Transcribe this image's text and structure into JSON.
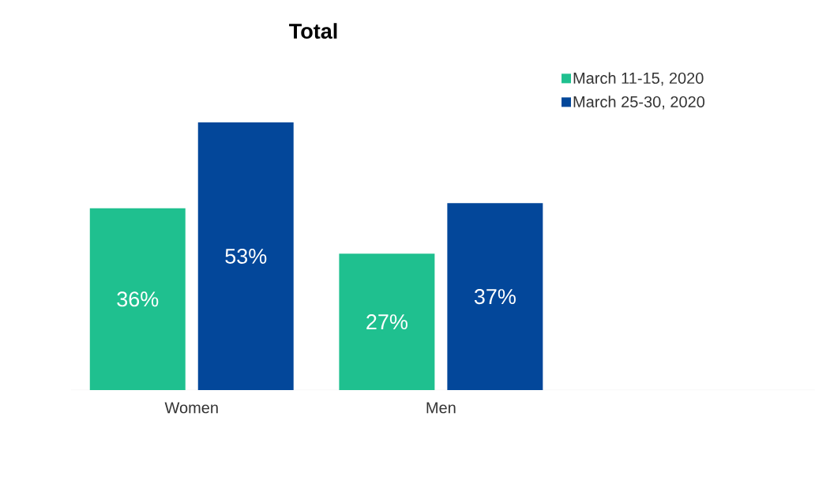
{
  "chart_data": {
    "type": "bar",
    "title": "Total",
    "categories": [
      "Women",
      "Men"
    ],
    "series": [
      {
        "name": "March 11-15, 2020",
        "color": "#1fc08f",
        "values": [
          36,
          27
        ],
        "value_labels": [
          "36%",
          "27%"
        ]
      },
      {
        "name": "March 25-30, 2020",
        "color": "#03479a",
        "values": [
          53,
          37
        ],
        "value_labels": [
          "53%",
          "37%"
        ]
      }
    ],
    "legend": "top right"
  }
}
